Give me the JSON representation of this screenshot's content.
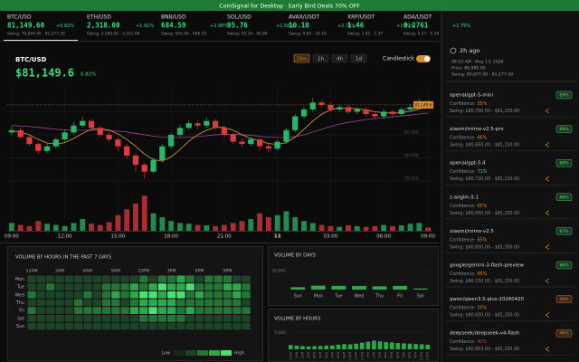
{
  "banner": {
    "text": "CoinSignal for Desktop · Early Bird Deals 70% OFF"
  },
  "tickers": [
    {
      "symbol": "BTC/USD",
      "price": "81,149.60",
      "change": "+0.82%",
      "swing": "Swing: 79,844.90 - 81,277.30"
    },
    {
      "symbol": "ETH/USD",
      "price": "2,318.00",
      "change": "+1.91%",
      "swing": "Swing: 2,289.00 - 2,321.68"
    },
    {
      "symbol": "BNB/USD",
      "price": "684.59",
      "change": "+2.98%",
      "swing": "Swing: 656.40 - 686.19"
    },
    {
      "symbol": "SOL/USD",
      "price": "95.76",
      "change": "+1.58%",
      "swing": "Swing: 93.34 - 96.88"
    },
    {
      "symbol": "AVAX/USDT",
      "price": "10.10",
      "change": "+2.76%",
      "swing": "Swing: 9.85 - 10.18"
    },
    {
      "symbol": "XRP/USDT",
      "price": "1.46",
      "change": "+1.89%",
      "swing": "Swing: 1.42 - 1.47"
    },
    {
      "symbol": "ADA/USDT",
      "price": "0.2761",
      "change": "+1.75%",
      "swing": "Swing: 0.27 - 0.28"
    }
  ],
  "main": {
    "symbol": "BTC/USD",
    "price": "$81,149.6",
    "change": "0.82%",
    "intervals": [
      "15m",
      "1h",
      "4h",
      "1d"
    ],
    "active_interval": "15m",
    "mode": "Candlestick",
    "chart": {
      "type": "candlestick",
      "categories": [
        "09:00",
        null,
        null,
        null,
        null,
        null,
        "12:00",
        null,
        null,
        null,
        null,
        null,
        "15:00",
        null,
        null,
        null,
        null,
        null,
        "18:00",
        null,
        null,
        null,
        null,
        null,
        "21:00",
        null,
        null,
        null,
        null,
        null,
        "13",
        null,
        null,
        null,
        null,
        null,
        "03:00",
        null,
        null,
        null,
        null,
        null,
        "06:00",
        null,
        null,
        null,
        null,
        "09:00"
      ],
      "open": [
        80550,
        80600,
        80450,
        80300,
        80150,
        80250,
        80400,
        80550,
        80700,
        80800,
        80650,
        80500,
        80400,
        80250,
        80050,
        79850,
        79700,
        79950,
        80250,
        80500,
        80650,
        80750,
        80700,
        80800,
        80650,
        80500,
        80350,
        80300,
        80400,
        80250,
        80200,
        80350,
        80600,
        80900,
        81050,
        81200,
        81150,
        81050,
        81100,
        81000,
        81050,
        80950,
        80900,
        81000,
        80950,
        81050,
        81100,
        81200
      ],
      "high": [
        80680,
        80650,
        80500,
        80350,
        80320,
        80450,
        80620,
        80780,
        80900,
        80850,
        80700,
        80560,
        80450,
        80300,
        80100,
        79900,
        80000,
        80300,
        80560,
        80720,
        80820,
        80800,
        80880,
        80850,
        80700,
        80550,
        80420,
        80460,
        80450,
        80300,
        80400,
        80650,
        80950,
        81120,
        81300,
        81260,
        81200,
        81160,
        81150,
        81100,
        81100,
        81000,
        81060,
        81050,
        81100,
        81160,
        81280,
        81250
      ],
      "low": [
        80500,
        80400,
        80250,
        80080,
        80100,
        80200,
        80350,
        80500,
        80650,
        80600,
        80450,
        80350,
        80150,
        79980,
        79700,
        79550,
        79650,
        79900,
        80200,
        80450,
        80600,
        80620,
        80650,
        80600,
        80450,
        80300,
        80230,
        80250,
        80150,
        80120,
        80150,
        80300,
        80550,
        80850,
        81000,
        81080,
        81000,
        81000,
        80950,
        80950,
        80900,
        80850,
        80850,
        80900,
        80900,
        81000,
        81050,
        81100
      ],
      "close": [
        80600,
        80450,
        80300,
        80150,
        80250,
        80400,
        80550,
        80700,
        80800,
        80650,
        80500,
        80400,
        80250,
        80050,
        79850,
        79700,
        79950,
        80250,
        80500,
        80650,
        80750,
        80700,
        80800,
        80650,
        80500,
        80350,
        80300,
        80400,
        80250,
        80200,
        80350,
        80600,
        80900,
        81050,
        81200,
        81150,
        81050,
        81100,
        81000,
        81050,
        80950,
        80900,
        81000,
        80950,
        81050,
        81100,
        81200,
        81150
      ],
      "ma_fast": {
        "color": "#d9a441",
        "values": [
          80580,
          80560,
          80500,
          80400,
          80320,
          80300,
          80330,
          80420,
          80530,
          80620,
          80640,
          80600,
          80520,
          80400,
          80250,
          80080,
          79960,
          79930,
          80020,
          80180,
          80360,
          80500,
          80600,
          80660,
          80660,
          80600,
          80500,
          80420,
          80370,
          80310,
          80290,
          80330,
          80450,
          80620,
          80800,
          80950,
          81040,
          81080,
          81080,
          81060,
          81040,
          81000,
          80980,
          80970,
          80980,
          81010,
          81060,
          81100
        ]
      },
      "ma_slow": {
        "color": "#a0448f",
        "values": [
          80700,
          80690,
          80680,
          80660,
          80640,
          80620,
          80610,
          80600,
          80600,
          80600,
          80600,
          80590,
          80580,
          80560,
          80530,
          80500,
          80470,
          80450,
          80440,
          80440,
          80450,
          80460,
          80480,
          80500,
          80510,
          80510,
          80500,
          80490,
          80470,
          80450,
          80440,
          80440,
          80460,
          80500,
          80560,
          80620,
          80680,
          80730,
          80770,
          80800,
          80830,
          80850,
          80870,
          80890,
          80910,
          80930,
          80950,
          80970
        ]
      },
      "volume": [
        20,
        15,
        12,
        25,
        18,
        15,
        12,
        20,
        30,
        18,
        15,
        22,
        40,
        55,
        70,
        90,
        45,
        35,
        25,
        20,
        18,
        15,
        14,
        12,
        15,
        20,
        25,
        30,
        45,
        35,
        40,
        50,
        35,
        25,
        20,
        15,
        12,
        10,
        14,
        12,
        10,
        12,
        15,
        12,
        14,
        18,
        20,
        8
      ],
      "vol_ylim": [
        0,
        100
      ],
      "ylim": [
        79400,
        81500
      ],
      "yticks": [
        {
          "value": 81000,
          "label": "81,000"
        },
        {
          "value": 80500,
          "label": "80,500"
        },
        {
          "value": 80000,
          "label": "80,000"
        },
        {
          "value": 79500,
          "label": "79,500"
        }
      ],
      "last": {
        "value": 81149.6,
        "label": "81,149.6"
      },
      "up_color": "#26b866",
      "down_color": "#e0393e"
    }
  },
  "heatmap": {
    "title": "VOLUME BY HOURS IN THE PAST 7 DAYS",
    "hour_labels": [
      "12AM",
      null,
      null,
      "3AM",
      null,
      null,
      "6AM",
      null,
      null,
      "9AM",
      null,
      null,
      "12PM",
      null,
      null,
      "3PM",
      null,
      null,
      "6PM",
      null,
      null,
      "9PM",
      null,
      null
    ],
    "days": [
      "Mon",
      "Tue",
      "Wed",
      "Thu",
      "Fri",
      "Sat",
      "Sun"
    ],
    "levels": [
      [
        1,
        1,
        1,
        1,
        1,
        1,
        1,
        1,
        1,
        1,
        1,
        1,
        2,
        1,
        2,
        2,
        3,
        2,
        1,
        2,
        2,
        2,
        1,
        1
      ],
      [
        1,
        1,
        2,
        1,
        1,
        1,
        1,
        1,
        2,
        2,
        2,
        3,
        2,
        3,
        4,
        3,
        3,
        4,
        2,
        2,
        2,
        3,
        3,
        2
      ],
      [
        2,
        1,
        1,
        1,
        1,
        1,
        2,
        1,
        2,
        3,
        2,
        3,
        4,
        4,
        3,
        4,
        4,
        2,
        3,
        2,
        2,
        2,
        3,
        2
      ],
      [
        1,
        1,
        1,
        1,
        1,
        2,
        1,
        1,
        2,
        2,
        1,
        2,
        3,
        3,
        3,
        3,
        2,
        2,
        2,
        2,
        2,
        2,
        2,
        1
      ],
      [
        2,
        1,
        1,
        1,
        1,
        2,
        2,
        2,
        2,
        2,
        2,
        3,
        3,
        4,
        3,
        3,
        2,
        3,
        2,
        2,
        2,
        2,
        2,
        2
      ],
      [
        1,
        1,
        1,
        1,
        1,
        1,
        1,
        1,
        1,
        1,
        1,
        1,
        2,
        2,
        2,
        2,
        2,
        1,
        1,
        1,
        1,
        1,
        1,
        1
      ],
      [
        1,
        1,
        1,
        1,
        1,
        1,
        1,
        1,
        1,
        1,
        1,
        1,
        1,
        1,
        1,
        1,
        1,
        1,
        1,
        1,
        1,
        1,
        1,
        1
      ]
    ],
    "colors": [
      "#17261b",
      "#1c4428",
      "#237636",
      "#2fa84c",
      "#4ee06e"
    ],
    "legend_low": "Low",
    "legend_high": "High"
  },
  "days_chart": {
    "type": "bar",
    "title": "VOLUME BY DAYS",
    "categories": [
      "Sun",
      "Mon",
      "Tue",
      "Wed",
      "Thu",
      "Fri",
      "Sat"
    ],
    "values": [
      2600,
      4200,
      4000,
      3800,
      3500,
      3900,
      1200
    ],
    "ylim": [
      0,
      25000
    ],
    "yticks": [
      {
        "value": 20000,
        "label": "20,000"
      }
    ],
    "color": "#2fa84c"
  },
  "hours_chart": {
    "type": "bar",
    "title": "VOLUME BY HOURS",
    "categories": [
      "12AM",
      "1AM",
      "2AM",
      "3AM",
      "4AM",
      "5AM",
      "6AM",
      "7AM",
      "8AM",
      "9AM",
      "10AM",
      "11AM",
      "12PM",
      "1PM",
      "2PM",
      "3PM",
      "4PM",
      "5PM",
      "6PM",
      "7PM",
      "8PM",
      "9PM",
      "10PM",
      "11PM"
    ],
    "values": [
      1300,
      1100,
      1000,
      900,
      950,
      1000,
      1100,
      1200,
      1400,
      1600,
      1500,
      1700,
      2000,
      2300,
      2600,
      2400,
      2200,
      2100,
      1900,
      1800,
      1700,
      1600,
      1500,
      1400
    ],
    "ylim": [
      0,
      6000
    ],
    "yticks": [
      {
        "value": 5000,
        "label": "5,000"
      }
    ],
    "color": "#2fa84c"
  },
  "signal": {
    "age": "2h ago",
    "time": "06:53 AM · May 13, 2026",
    "price": "Price: 80,980.00",
    "swing": "Swing: 80,877.00 - 81,277.00",
    "confidence_label": "Confidence:",
    "items": [
      {
        "model": "openai/gpt-5-mini",
        "confidence": "55%",
        "confidence_color": "#e08a2c",
        "swing": "Swing: $80,700.00 - $81,250.00",
        "score": "89%",
        "score_color": "#4ee06e"
      },
      {
        "model": "xiaomi/mimo-v2.5-pro",
        "confidence": "66%",
        "confidence_color": "#e08a2c",
        "swing": "Swing: $80,650.00 - $81,250.00",
        "score": "88%",
        "score_color": "#4ee06e"
      },
      {
        "model": "openai/gpt-5.4",
        "confidence": "71%",
        "confidence_color": "#4ee06e",
        "swing": "Swing: $80,720.00 - $81,220.00",
        "score": "88%",
        "score_color": "#4ee06e"
      },
      {
        "model": "z-ai/glm-5.1",
        "confidence": "65%",
        "confidence_color": "#e08a2c",
        "swing": "Swing: $80,650.00 - $81,250.00",
        "score": "88%",
        "score_color": "#4ee06e"
      },
      {
        "model": "xiaomi/mimo-v2.5",
        "confidence": "65%",
        "confidence_color": "#e08a2c",
        "swing": "Swing: $80,600.00 - $81,300.00",
        "score": "87%",
        "score_color": "#4ee06e"
      },
      {
        "model": "google/gemini-3-flash-preview",
        "confidence": "65%",
        "confidence_color": "#e08a2c",
        "swing": "Swing: $80,150.00 - $81,250.00",
        "score": "86%",
        "score_color": "#4ee06e"
      },
      {
        "model": "qwen/qwen3.5-plus-20260420",
        "confidence": "55%",
        "confidence_color": "#e08a2c",
        "swing": "Swing: $80,650.00 - $81,250.00",
        "score": "46%",
        "score_color": "#e08a2c"
      },
      {
        "model": "deepseek/deepseek-v4-flash",
        "confidence": "40%",
        "confidence_color": "#e0393e",
        "swing": "Swing: $80,653.00 - $81,255.00",
        "score": "46%",
        "score_color": "#e08a2c"
      }
    ]
  }
}
